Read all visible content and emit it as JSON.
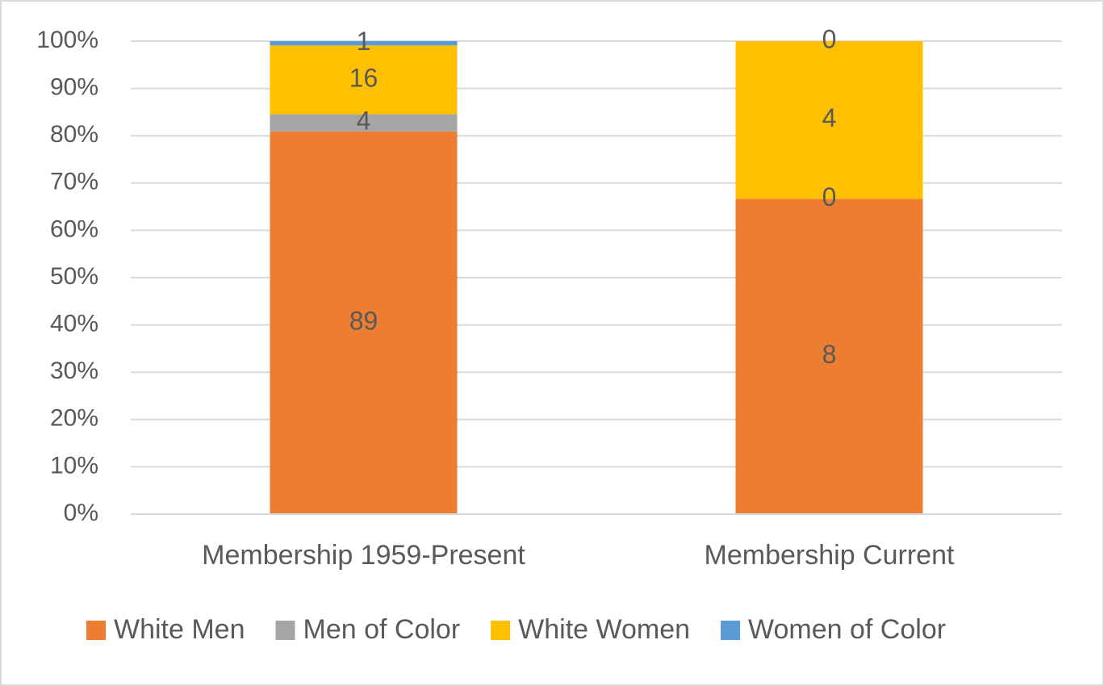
{
  "chart_data": {
    "type": "bar",
    "stacking": "percent",
    "categories": [
      "Membership 1959-Present",
      "Membership Current"
    ],
    "series": [
      {
        "name": "White Men",
        "color": "#ed7d31",
        "values": [
          89,
          8
        ]
      },
      {
        "name": "Men of Color",
        "color": "#a5a5a5",
        "values": [
          4,
          0
        ]
      },
      {
        "name": "White Women",
        "color": "#ffc000",
        "values": [
          16,
          4
        ]
      },
      {
        "name": "Women of Color",
        "color": "#5b9bd5",
        "values": [
          1,
          0
        ]
      }
    ],
    "ylim": [
      0,
      100
    ],
    "yticks": [
      {
        "value": 0,
        "label": "0%"
      },
      {
        "value": 10,
        "label": "10%"
      },
      {
        "value": 20,
        "label": "20%"
      },
      {
        "value": 30,
        "label": "30%"
      },
      {
        "value": 40,
        "label": "40%"
      },
      {
        "value": 50,
        "label": "50%"
      },
      {
        "value": 60,
        "label": "60%"
      },
      {
        "value": 70,
        "label": "70%"
      },
      {
        "value": 80,
        "label": "80%"
      },
      {
        "value": 90,
        "label": "90%"
      },
      {
        "value": 100,
        "label": "100%"
      }
    ],
    "grid": true,
    "legend": "bottom"
  }
}
